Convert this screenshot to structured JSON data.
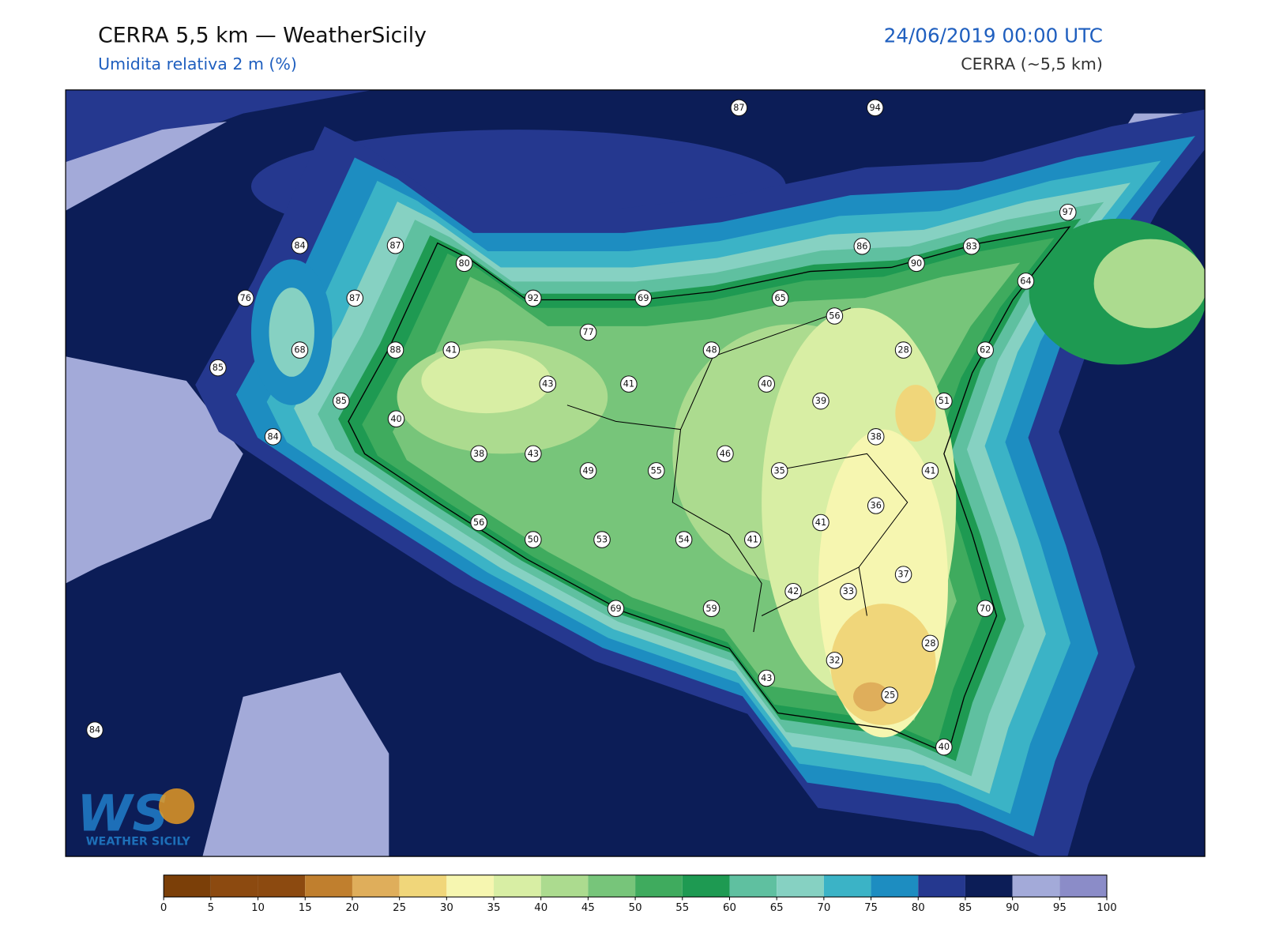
{
  "header": {
    "title": "CERRA 5,5 km — WeatherSicily",
    "subtitle": "Umidita relativa 2 m (%)",
    "datetime": "24/06/2019 00:00 UTC",
    "model": "CERRA (~5,5 km)"
  },
  "stations": [
    87,
    94,
    97,
    84,
    87,
    80,
    86,
    90,
    83,
    64,
    76,
    87,
    92,
    69,
    65,
    56,
    77,
    68,
    88,
    41,
    48,
    28,
    62,
    85,
    43,
    41,
    40,
    39,
    51,
    85,
    40,
    84,
    38,
    38,
    43,
    46,
    49,
    55,
    35,
    41,
    36,
    41,
    56,
    50,
    53,
    54,
    41,
    37,
    42,
    33,
    70,
    69,
    59,
    28,
    32,
    43,
    25,
    84,
    40
  ],
  "colorbar": {
    "ticks": [
      0,
      5,
      10,
      15,
      20,
      25,
      30,
      35,
      40,
      45,
      50,
      55,
      60,
      65,
      70,
      75,
      80,
      85,
      90,
      95,
      100
    ],
    "colors": [
      "#7b3f08",
      "#8c4a10",
      "#8c4a10",
      "#c07f2e",
      "#dfae5b",
      "#f0d67a",
      "#f6f6b0",
      "#d8eea4",
      "#acdb8f",
      "#77c57a",
      "#3fab5e",
      "#1e9a52",
      "#5fc0a0",
      "#86d1c2",
      "#3bb3c6",
      "#1d8dc1",
      "#25388f",
      "#0c1d57",
      "#a3aad9",
      "#8b8cc8"
    ]
  },
  "logo": {
    "initials": "WS",
    "name": "WEATHER SICILY"
  }
}
